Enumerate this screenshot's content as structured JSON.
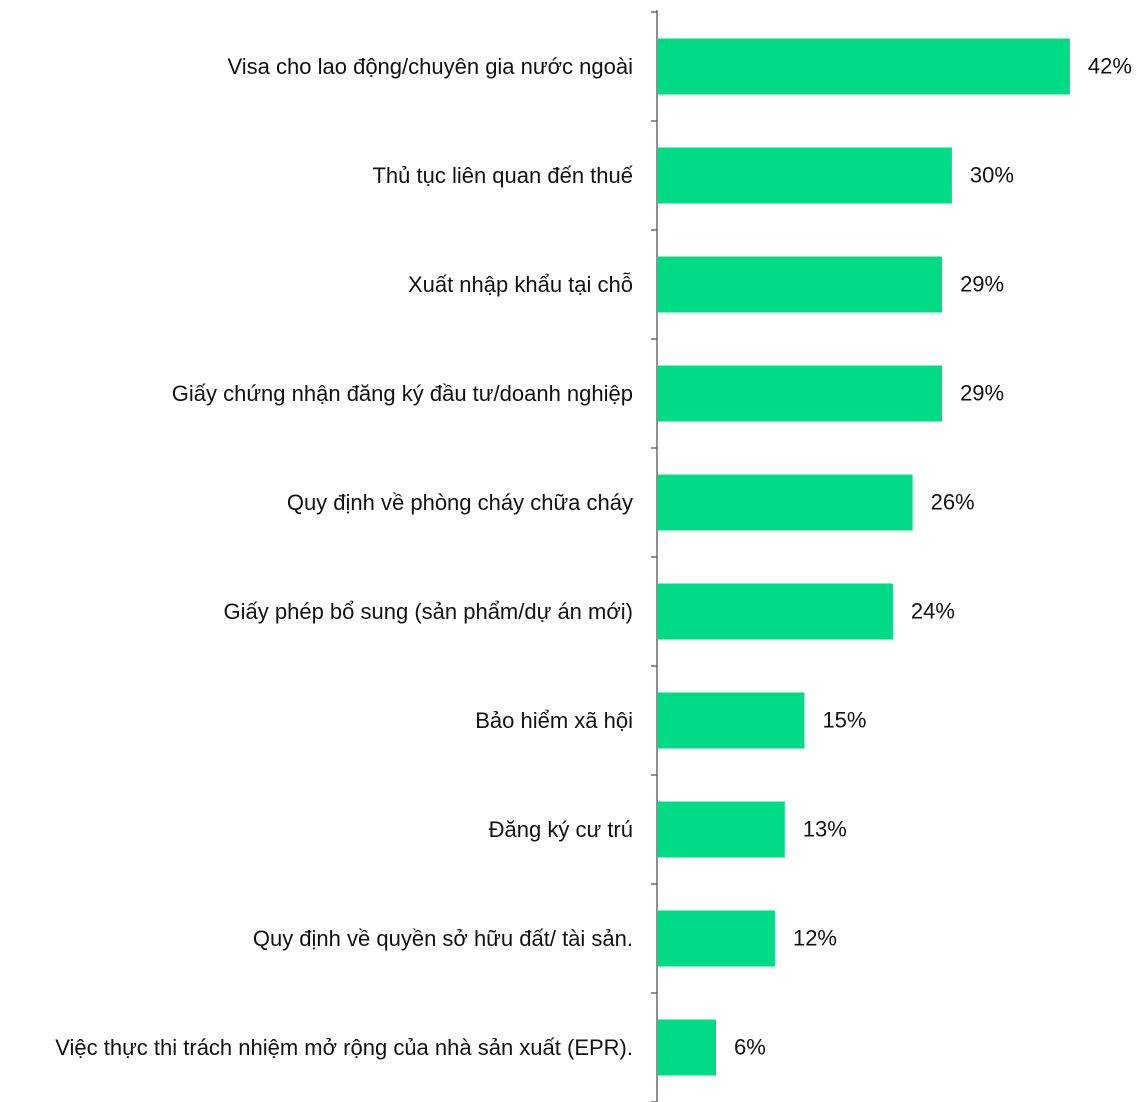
{
  "chart_data": {
    "type": "barh",
    "categories": [
      "Visa cho lao động/chuyên gia nước ngoài",
      "Thủ tục liên quan đến thuế",
      "Xuất nhập khẩu tại chỗ",
      "Giấy chứng nhận đăng ký đầu tư/doanh nghiệp",
      "Quy định về phòng cháy chữa cháy",
      "Giấy phép bổ sung (sản phẩm/dự án mới)",
      "Bảo hiểm xã hội",
      "Đăng ký cư trú",
      "Quy định về quyền sở hữu đất/ tài sản.",
      "Việc thực thi trách nhiệm mở rộng của nhà sản xuất (EPR)."
    ],
    "values": [
      42,
      30,
      29,
      29,
      26,
      24,
      15,
      13,
      12,
      6
    ],
    "value_labels": [
      "42%",
      "30%",
      "29%",
      "29%",
      "26%",
      "24%",
      "15%",
      "13%",
      "12%",
      "6%"
    ],
    "color": "#00dc85"
  }
}
